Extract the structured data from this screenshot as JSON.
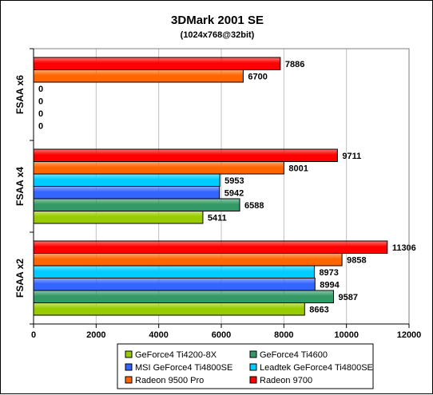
{
  "chart_data": {
    "type": "bar",
    "orientation": "horizontal",
    "title": "3DMark 2001 SE",
    "subtitle": "(1024x768@32bit)",
    "groups": [
      "FSAA x6",
      "FSAA x4",
      "FSAA x2"
    ],
    "xlim": [
      0,
      12000
    ],
    "xticks": [
      0,
      2000,
      4000,
      6000,
      8000,
      10000,
      12000
    ],
    "grid": "vertical",
    "legend_position": "bottom",
    "series": [
      {
        "name": "GeForce4 Ti4200-8X",
        "color": "#99cc00",
        "values": [
          0,
          5411,
          8663
        ]
      },
      {
        "name": "GeForce4 Ti4600",
        "color": "#339966",
        "values": [
          0,
          6588,
          9587
        ]
      },
      {
        "name": "MSI GeForce4 Ti4800SE",
        "color": "#3366ff",
        "values": [
          0,
          5942,
          8994
        ]
      },
      {
        "name": "Leadtek GeForce4 Ti4800SE",
        "color": "#00ccff",
        "values": [
          0,
          5953,
          8973
        ]
      },
      {
        "name": "Radeon 9500 Pro",
        "color": "#ff6600",
        "values": [
          6700,
          8001,
          9858
        ]
      },
      {
        "name": "Radeon 9700",
        "color": "#ff0000",
        "values": [
          7886,
          9711,
          11306
        ]
      }
    ]
  }
}
